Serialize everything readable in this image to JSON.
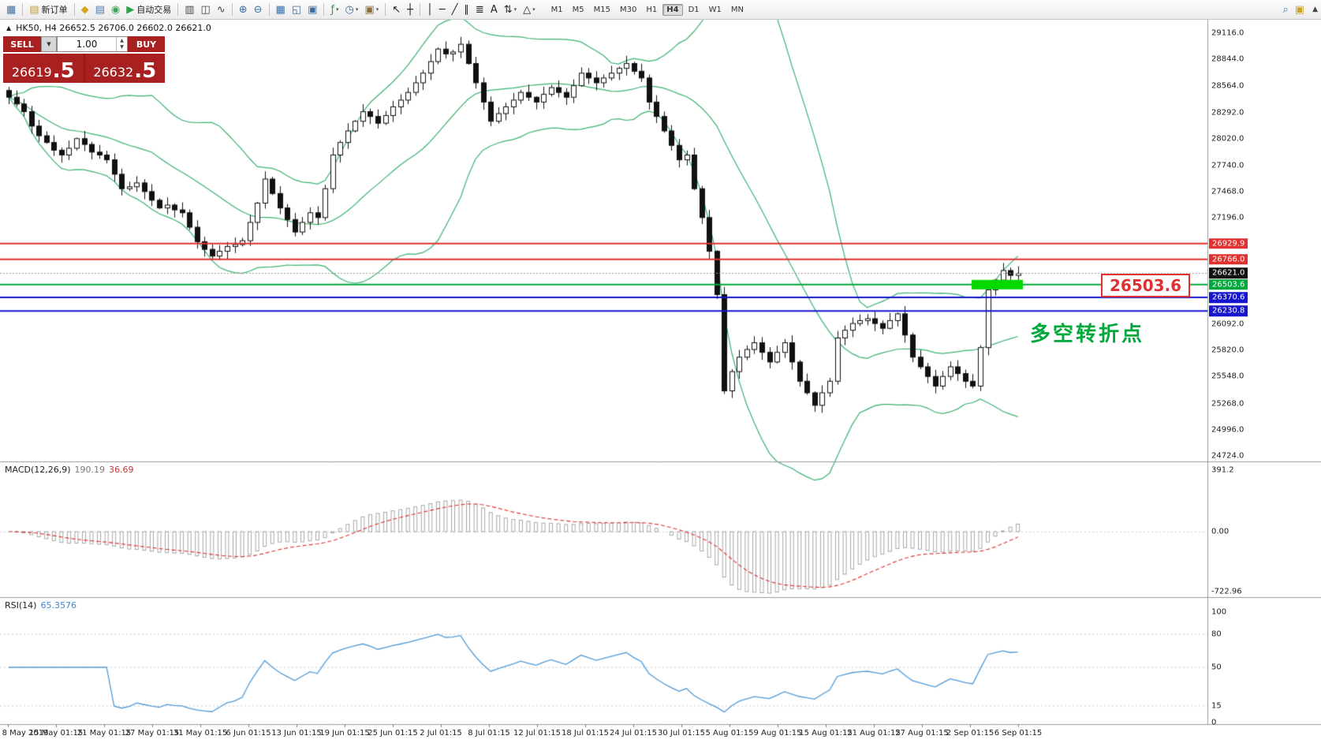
{
  "toolbar": {
    "groups": [
      {
        "items": [
          {
            "name": "app-icon",
            "glyph": "▦",
            "color": "#3a6ea5"
          }
        ]
      },
      {
        "items": [
          {
            "name": "new-order-button",
            "glyph": "▤",
            "color": "#c49a3c",
            "label": "新订单"
          }
        ]
      },
      {
        "items": [
          {
            "name": "profiles-icon",
            "glyph": "◆",
            "color": "#d8a428"
          },
          {
            "name": "market-watch-icon",
            "glyph": "▤",
            "color": "#4a7ab5"
          },
          {
            "name": "navigator-icon",
            "glyph": "◉",
            "color": "#3fa35c"
          },
          {
            "name": "auto-trading-button",
            "glyph": "▶",
            "color": "#2f9e44",
            "label": "自动交易"
          }
        ]
      },
      {
        "items": [
          {
            "name": "bar-chart-icon",
            "glyph": "▥",
            "color": "#444444"
          },
          {
            "name": "candlestick-chart-icon",
            "glyph": "◫",
            "color": "#444444"
          },
          {
            "name": "line-chart-icon",
            "glyph": "∿",
            "color": "#444444"
          }
        ]
      },
      {
        "items": [
          {
            "name": "zoom-in-icon",
            "glyph": "⊕",
            "color": "#3a6ea5"
          },
          {
            "name": "zoom-out-icon",
            "glyph": "⊖",
            "color": "#3a6ea5"
          }
        ]
      },
      {
        "items": [
          {
            "name": "tile-windows-icon",
            "glyph": "▦",
            "color": "#3a6ea5"
          },
          {
            "name": "auto-arrange-icon",
            "glyph": "◱",
            "color": "#3a6ea5"
          },
          {
            "name": "grid-icon",
            "glyph": "▣",
            "color": "#3a6ea5"
          }
        ]
      },
      {
        "items": [
          {
            "name": "indicators-icon",
            "glyph": "ƒ",
            "color": "#2f9e44",
            "dropdown": true
          },
          {
            "name": "periods-icon",
            "glyph": "◷",
            "color": "#3a6ea5",
            "dropdown": true
          },
          {
            "name": "templates-icon",
            "glyph": "▣",
            "color": "#8a6d3b",
            "dropdown": true
          }
        ]
      },
      {
        "items": [
          {
            "name": "cursor-icon",
            "glyph": "↖",
            "color": "#222222"
          },
          {
            "name": "crosshair-icon",
            "glyph": "┼",
            "color": "#222222"
          }
        ]
      },
      {
        "items": [
          {
            "name": "vertical-line-icon",
            "glyph": "│",
            "color": "#222222"
          },
          {
            "name": "horizontal-line-icon",
            "glyph": "─",
            "color": "#222222"
          },
          {
            "name": "trendline-icon",
            "glyph": "╱",
            "color": "#222222"
          },
          {
            "name": "channel-icon",
            "glyph": "∥",
            "color": "#222222"
          },
          {
            "name": "fibonacci-icon",
            "glyph": "≣",
            "color": "#222222"
          },
          {
            "name": "text-icon",
            "glyph": "A",
            "color": "#222222"
          },
          {
            "name": "arrows-icon",
            "glyph": "⇅",
            "color": "#222222",
            "dropdown": true
          },
          {
            "name": "shapes-icon",
            "glyph": "△",
            "color": "#222222",
            "dropdown": true
          }
        ]
      }
    ],
    "timeframes": [
      "M1",
      "M5",
      "M15",
      "M30",
      "H1",
      "H4",
      "D1",
      "W1",
      "MN"
    ],
    "active_timeframe": "H4",
    "right_icons": [
      {
        "name": "search-icon",
        "glyph": "⌕",
        "color": "#3a6ea5"
      },
      {
        "name": "chat-icon",
        "glyph": "▣",
        "color": "#c9a227"
      }
    ],
    "overflow_icon": "▲"
  },
  "chart": {
    "one_click_toggle": "▲",
    "symbol_title": "HK50, H4  26652.5 26706.0 26602.0 26621.0"
  },
  "trade_panel": {
    "sell_label": "SELL",
    "buy_label": "BUY",
    "volume": "1.00",
    "volume_dd": "▼",
    "spin_up": "▲",
    "spin_down": "▼",
    "sell_price": {
      "main": "26619",
      "frac": ".5"
    },
    "buy_price": {
      "main": "26632",
      "frac": ".5"
    }
  },
  "price_axis": {
    "labels": [
      29116.0,
      28844.0,
      28564.0,
      28292.0,
      28020.0,
      27740.0,
      27468.0,
      27196.0,
      26092.0,
      25820.0,
      25548.0,
      25268.0,
      24996.0,
      24724.0
    ],
    "tags": [
      {
        "text": "26929.9",
        "price": 26929.9,
        "bg": "#e03131"
      },
      {
        "text": "26766.0",
        "price": 26766.0,
        "bg": "#e03131"
      },
      {
        "text": "26621.0",
        "price": 26621.0,
        "bg": "#111111"
      },
      {
        "text": "26503.6",
        "price": 26503.6,
        "bg": "#00a83c"
      },
      {
        "text": "26370.6",
        "price": 26370.6,
        "bg": "#1515cc"
      },
      {
        "text": "26230.8",
        "price": 26230.8,
        "bg": "#1515cc"
      }
    ]
  },
  "hlines": [
    {
      "price": 26929.9,
      "color": "#e03131",
      "w": 2
    },
    {
      "price": 26766.0,
      "color": "#e03131",
      "w": 2
    },
    {
      "price": 26621.0,
      "color": "#999999",
      "w": 1,
      "dash": true
    },
    {
      "price": 26503.6,
      "color": "#00a83c",
      "w": 2
    },
    {
      "price": 26370.6,
      "color": "#1515cc",
      "w": 2
    },
    {
      "price": 26230.8,
      "color": "#1515cc",
      "w": 2
    }
  ],
  "annotations": {
    "big_price_label": "26503.6",
    "turning_point_label": "多空转折点",
    "highlight": {
      "color": "#00d900",
      "price": 26503.6
    }
  },
  "chart_data": {
    "type": "candlestick",
    "symbol": "HK50",
    "timeframe": "H4",
    "title": "HK50, H4 26652.5 26706.0 26602.0 26621.0",
    "ylim": [
      24667,
      29255
    ],
    "closes": [
      28450,
      28380,
      28300,
      28150,
      28050,
      27980,
      27900,
      27850,
      27920,
      28020,
      27960,
      27880,
      27850,
      27800,
      27650,
      27500,
      27520,
      27560,
      27470,
      27380,
      27300,
      27330,
      27280,
      27250,
      27100,
      26950,
      26870,
      26800,
      26850,
      26900,
      26920,
      26960,
      27150,
      27350,
      27600,
      27450,
      27300,
      27180,
      27050,
      27150,
      27250,
      27200,
      27500,
      27850,
      27980,
      28100,
      28200,
      28300,
      28250,
      28180,
      28260,
      28350,
      28420,
      28500,
      28600,
      28700,
      28820,
      28950,
      28900,
      28920,
      29000,
      28800,
      28600,
      28400,
      28200,
      28280,
      28350,
      28420,
      28500,
      28450,
      28400,
      28480,
      28550,
      28500,
      28450,
      28570,
      28700,
      28650,
      28600,
      28650,
      28700,
      28750,
      28800,
      28720,
      28650,
      28400,
      28250,
      28100,
      27950,
      27800,
      27850,
      27500,
      27200,
      26850,
      26400,
      25400,
      25600,
      25750,
      25830,
      25900,
      25800,
      25700,
      25800,
      25900,
      25700,
      25500,
      25380,
      25250,
      25380,
      25500,
      25950,
      26030,
      26100,
      26130,
      26150,
      26100,
      26050,
      26130,
      26200,
      25980,
      25750,
      25650,
      25550,
      25450,
      25550,
      25650,
      25580,
      25500,
      25450,
      25850,
      26450,
      26550,
      26650,
      26600,
      26621
    ],
    "bollinger": {
      "period": 20,
      "deviation": 2,
      "color": "#3CB371"
    },
    "macd": {
      "label": "MACD(12,26,9)",
      "v1": "190.19",
      "v2": "36.69",
      "axis_labels": [
        "391.2",
        "0.00",
        "-722.96"
      ],
      "hist_color": "#9f9f9f",
      "signal_color": "#e03131"
    },
    "rsi": {
      "label": "RSI(14)",
      "value": "65.3576",
      "axis_labels": [
        100,
        80,
        50,
        15,
        0
      ],
      "levels": [
        80,
        50,
        15
      ],
      "color": "#4f9bd9"
    },
    "x_labels": [
      "8 May 2019",
      "15 May 01:15",
      "21 May 01:15",
      "27 May 01:15",
      "31 May 01:15",
      "6 Jun 01:15",
      "13 Jun 01:15",
      "19 Jun 01:15",
      "25 Jun 01:15",
      "2 Jul 01:15",
      "8 Jul 01:15",
      "12 Jul 01:15",
      "18 Jul 01:15",
      "24 Jul 01:15",
      "30 Jul 01:15",
      "5 Aug 01:15",
      "9 Aug 01:15",
      "15 Aug 01:15",
      "21 Aug 01:15",
      "27 Aug 01:15",
      "2 Sep 01:15",
      "6 Sep 01:15"
    ]
  }
}
